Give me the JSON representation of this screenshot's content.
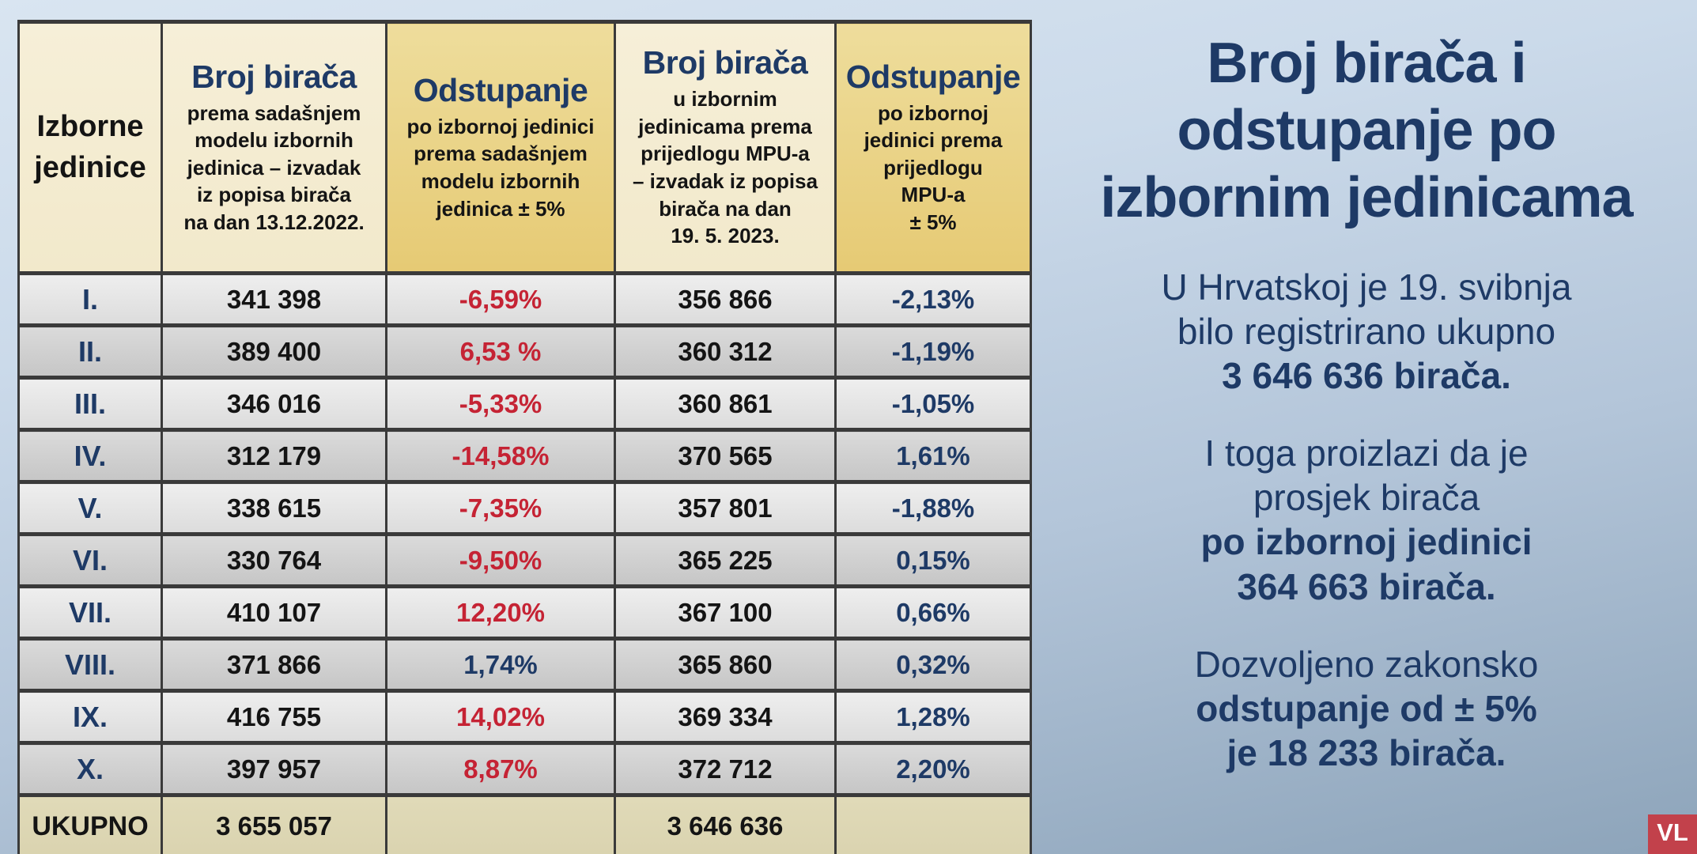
{
  "colors": {
    "navy_text": "#1e3a66",
    "red_deviation": "#c52334",
    "gold_header": "#e9cf7d",
    "cream_header": "#f2e9cb",
    "total_row_khaki": "#d9d2ae",
    "row_light_gray": "#e9e9e9",
    "row_dark_gray": "#cfcfcf",
    "background_blue_top": "#d9e5f1",
    "background_blue_bottom": "#8da4ba",
    "logo_red": "#c2414b"
  },
  "table": {
    "headers": [
      {
        "big": "",
        "sub": "Izborne\njedinice"
      },
      {
        "big": "Broj birača",
        "sub": "prema sadašnjem\nmodelu izbornih\njedinica –  izvadak\niz popisa birača\nna dan 13.12.2022."
      },
      {
        "big": "Odstupanje",
        "sub": "po izbornoj jedinici\nprema sadašnjem\nmodelu izbornih\njedinica ± 5%"
      },
      {
        "big": "Broj birača",
        "sub": "u izbornim\njedinicama prema\nprijedlogu MPU-a\n– izvadak iz popisa\nbirača na dan\n19. 5. 2023."
      },
      {
        "big": "Odstupanje",
        "sub": "po izbornoj\njedinici prema\nprijedlogu\nMPU-a\n± 5%"
      }
    ],
    "rows": [
      {
        "unit": "I.",
        "current": "341 398",
        "dev_current": "-6,59%",
        "dev_current_color": "red",
        "proposed": "356 866",
        "dev_proposed": "-2,13%",
        "dev_proposed_color": "blue"
      },
      {
        "unit": "II.",
        "current": "389 400",
        "dev_current": "6,53 %",
        "dev_current_color": "red",
        "proposed": "360 312",
        "dev_proposed": "-1,19%",
        "dev_proposed_color": "blue"
      },
      {
        "unit": "III.",
        "current": "346 016",
        "dev_current": "-5,33%",
        "dev_current_color": "red",
        "proposed": "360 861",
        "dev_proposed": "-1,05%",
        "dev_proposed_color": "blue"
      },
      {
        "unit": "IV.",
        "current": "312 179",
        "dev_current": "-14,58%",
        "dev_current_color": "red",
        "proposed": "370 565",
        "dev_proposed": "1,61%",
        "dev_proposed_color": "blue"
      },
      {
        "unit": "V.",
        "current": "338 615",
        "dev_current": "-7,35%",
        "dev_current_color": "red",
        "proposed": "357 801",
        "dev_proposed": "-1,88%",
        "dev_proposed_color": "blue"
      },
      {
        "unit": "VI.",
        "current": "330 764",
        "dev_current": "-9,50%",
        "dev_current_color": "red",
        "proposed": "365 225",
        "dev_proposed": "0,15%",
        "dev_proposed_color": "blue"
      },
      {
        "unit": "VII.",
        "current": "410 107",
        "dev_current": "12,20%",
        "dev_current_color": "red",
        "proposed": "367 100",
        "dev_proposed": "0,66%",
        "dev_proposed_color": "blue"
      },
      {
        "unit": "VIII.",
        "current": "371 866",
        "dev_current": "1,74%",
        "dev_current_color": "blue",
        "proposed": "365 860",
        "dev_proposed": "0,32%",
        "dev_proposed_color": "blue"
      },
      {
        "unit": "IX.",
        "current": "416 755",
        "dev_current": "14,02%",
        "dev_current_color": "red",
        "proposed": "369 334",
        "dev_proposed": "1,28%",
        "dev_proposed_color": "blue"
      },
      {
        "unit": "X.",
        "current": "397 957",
        "dev_current": "8,87%",
        "dev_current_color": "red",
        "proposed": "372 712",
        "dev_proposed": "2,20%",
        "dev_proposed_color": "blue"
      }
    ],
    "total": {
      "label": "UKUPNO",
      "current": "3 655 057",
      "dev_current": "",
      "proposed": "3 646 636",
      "dev_proposed": ""
    }
  },
  "panel": {
    "title": "Broj birača i\nodstupanje po\nizbornim jedinicama",
    "p1_regular": "U Hrvatskoj je 19. svibnja\nbilo registrirano ukupno",
    "p1_bold": "3 646 636 birača.",
    "p2_regular": "I toga proizlazi da je\nprosjek birača",
    "p2_bold": "po izbornoj jedinici\n364 663 birača.",
    "p3_regular": "Dozvoljeno zakonsko",
    "p3_bold": "odstupanje od ± 5%\nje 18 233 birača."
  },
  "logo": {
    "text": "VL"
  }
}
